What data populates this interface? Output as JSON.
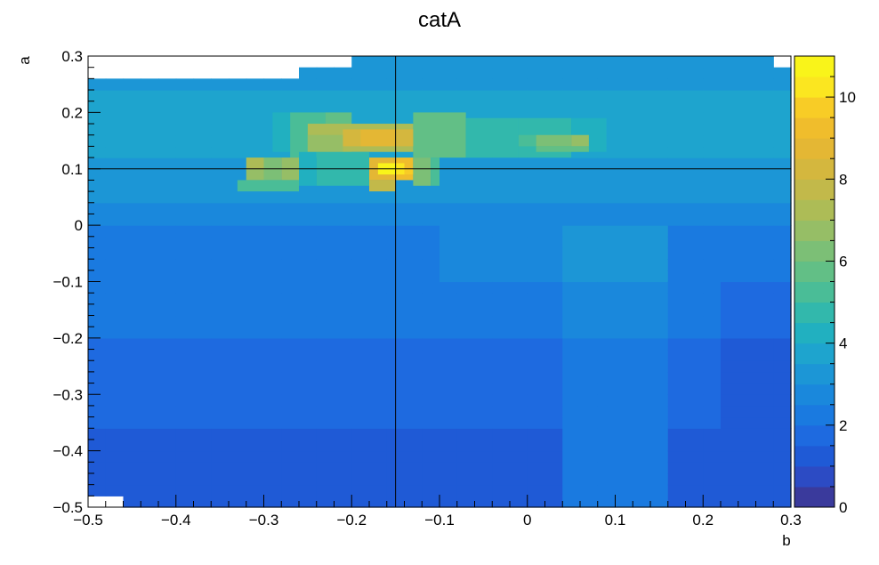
{
  "chart_data": {
    "type": "heatmap",
    "title": "catA",
    "xlabel": "b",
    "ylabel": "a",
    "xlim": [
      -0.5,
      0.3
    ],
    "ylim": [
      -0.5,
      0.3
    ],
    "zlim": [
      0,
      11
    ],
    "x_bins": 40,
    "y_bins": 40,
    "x_ticks": [
      {
        "value": -0.5,
        "label": "−0.5"
      },
      {
        "value": -0.4,
        "label": "−0.4"
      },
      {
        "value": -0.3,
        "label": "−0.3"
      },
      {
        "value": -0.2,
        "label": "−0.2"
      },
      {
        "value": -0.1,
        "label": "−0.1"
      },
      {
        "value": 0,
        "label": "0"
      },
      {
        "value": 0.1,
        "label": "0.1"
      },
      {
        "value": 0.2,
        "label": "0.2"
      },
      {
        "value": 0.3,
        "label": "0.3"
      }
    ],
    "y_ticks": [
      {
        "value": 0.3,
        "label": "0.3"
      },
      {
        "value": 0.2,
        "label": "0.2"
      },
      {
        "value": 0.1,
        "label": "0.1"
      },
      {
        "value": 0,
        "label": "0"
      },
      {
        "value": -0.1,
        "label": "−0.1"
      },
      {
        "value": -0.2,
        "label": "−0.2"
      },
      {
        "value": -0.3,
        "label": "−0.3"
      },
      {
        "value": -0.4,
        "label": "−0.4"
      },
      {
        "value": -0.5,
        "label": "−0.5"
      }
    ],
    "z_ticks": [
      {
        "value": 0,
        "label": "0"
      },
      {
        "value": 2,
        "label": "2"
      },
      {
        "value": 4,
        "label": "4"
      },
      {
        "value": 6,
        "label": "6"
      },
      {
        "value": 8,
        "label": "8"
      },
      {
        "value": 10,
        "label": "10"
      }
    ],
    "crosshair": {
      "x": -0.15,
      "y": 0.1
    },
    "palette": [
      "#3a3a9c",
      "#2c4bc4",
      "#1f5ad6",
      "#1e6ae0",
      "#1a7ae0",
      "#1a88dc",
      "#1c96d6",
      "#1ea4ce",
      "#21b0c0",
      "#32b8ac",
      "#4abd97",
      "#62bf86",
      "#7cbf76",
      "#96be66",
      "#adbc56",
      "#c2b94a",
      "#d4b73e",
      "#e4b734",
      "#f0bd2c",
      "#f8cc26",
      "#fbe620",
      "#f9f41a"
    ],
    "hot_regions": [
      {
        "x0": -0.29,
        "x1": -0.27,
        "y0": 0.13,
        "y1": 0.2,
        "v": 4.2
      },
      {
        "x0": -0.27,
        "x1": -0.23,
        "y0": 0.12,
        "y1": 0.2,
        "v": 5.2
      },
      {
        "x0": -0.23,
        "x1": -0.2,
        "y0": 0.12,
        "y1": 0.2,
        "v": 5.8
      },
      {
        "x0": -0.13,
        "x1": -0.07,
        "y0": 0.12,
        "y1": 0.2,
        "v": 5.5
      },
      {
        "x0": -0.07,
        "x1": -0.01,
        "y0": 0.12,
        "y1": 0.19,
        "v": 4.6
      },
      {
        "x0": -0.01,
        "x1": 0.05,
        "y0": 0.12,
        "y1": 0.19,
        "v": 4.8
      },
      {
        "x0": 0.05,
        "x1": 0.09,
        "y0": 0.13,
        "y1": 0.19,
        "v": 4.0
      },
      {
        "x0": -0.25,
        "x1": -0.13,
        "y0": 0.13,
        "y1": 0.18,
        "v": 7.0
      },
      {
        "x0": -0.21,
        "x1": -0.19,
        "y0": 0.14,
        "y1": 0.17,
        "v": 8.4
      },
      {
        "x0": -0.19,
        "x1": -0.15,
        "y0": 0.14,
        "y1": 0.17,
        "v": 8.8
      },
      {
        "x0": -0.15,
        "x1": -0.13,
        "y0": 0.14,
        "y1": 0.17,
        "v": 8.2
      },
      {
        "x0": -0.25,
        "x1": -0.21,
        "y0": 0.13,
        "y1": 0.16,
        "v": 6.6
      },
      {
        "x0": -0.01,
        "x1": 0.01,
        "y0": 0.14,
        "y1": 0.16,
        "v": 5.2
      },
      {
        "x0": 0.01,
        "x1": 0.05,
        "y0": 0.14,
        "y1": 0.16,
        "v": 6.4
      },
      {
        "x0": 0.05,
        "x1": 0.07,
        "y0": 0.14,
        "y1": 0.16,
        "v": 6.8
      },
      {
        "x0": 0.01,
        "x1": 0.07,
        "y0": 0.13,
        "y1": 0.14,
        "v": 5.6
      },
      {
        "x0": -0.32,
        "x1": -0.3,
        "y0": 0.1,
        "y1": 0.12,
        "v": 7.2
      },
      {
        "x0": -0.32,
        "x1": -0.3,
        "y0": 0.08,
        "y1": 0.1,
        "v": 6.6
      },
      {
        "x0": -0.3,
        "x1": -0.28,
        "y0": 0.08,
        "y1": 0.12,
        "v": 6.0
      },
      {
        "x0": -0.28,
        "x1": -0.26,
        "y0": 0.08,
        "y1": 0.12,
        "v": 6.8
      },
      {
        "x0": -0.33,
        "x1": -0.26,
        "y0": 0.06,
        "y1": 0.08,
        "v": 5.4
      },
      {
        "x0": -0.26,
        "x1": -0.24,
        "y0": 0.07,
        "y1": 0.13,
        "v": 4.4
      },
      {
        "x0": -0.24,
        "x1": -0.18,
        "y0": 0.07,
        "y1": 0.13,
        "v": 4.8
      },
      {
        "x0": -0.18,
        "x1": -0.15,
        "y0": 0.08,
        "y1": 0.12,
        "v": 8.6
      },
      {
        "x0": -0.15,
        "x1": -0.13,
        "y0": 0.08,
        "y1": 0.12,
        "v": 9.0
      },
      {
        "x0": -0.18,
        "x1": -0.15,
        "y0": 0.06,
        "y1": 0.08,
        "v": 7.6
      },
      {
        "x0": -0.17,
        "x1": -0.15,
        "y0": 0.09,
        "y1": 0.11,
        "v": 11.0
      },
      {
        "x0": -0.15,
        "x1": -0.14,
        "y0": 0.09,
        "y1": 0.11,
        "v": 10.4
      },
      {
        "x0": -0.14,
        "x1": -0.13,
        "y0": 0.09,
        "y1": 0.1,
        "v": 9.6
      },
      {
        "x0": -0.13,
        "x1": -0.11,
        "y0": 0.07,
        "y1": 0.12,
        "v": 6.0
      },
      {
        "x0": -0.11,
        "x1": -0.1,
        "y0": 0.07,
        "y1": 0.12,
        "v": 5.0
      }
    ]
  }
}
